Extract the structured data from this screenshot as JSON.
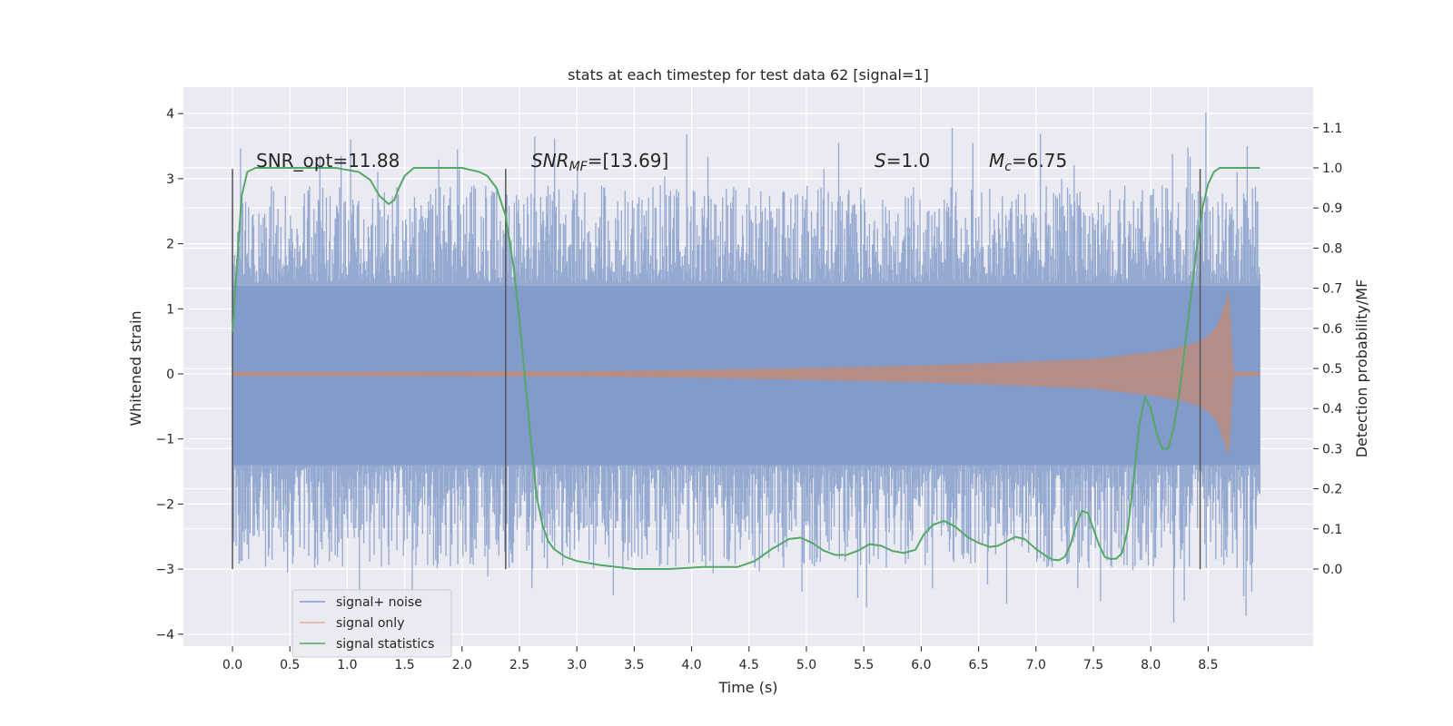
{
  "chart_data": {
    "type": "line",
    "title": "stats at each timestep for test data 62 [signal=1]",
    "xlabel": "Time (s)",
    "ylabel": "Whitened strain",
    "ylabel_right": "Detection probability/MF",
    "xlim": [
      -0.44,
      9.44
    ],
    "ylim": [
      -4.2,
      4.4
    ],
    "ylim_right": [
      -0.18,
      1.2
    ],
    "xticks": [
      0.0,
      0.5,
      1.0,
      1.5,
      2.0,
      2.5,
      3.0,
      3.5,
      4.0,
      4.5,
      5.0,
      5.5,
      6.0,
      6.5,
      7.0,
      7.5,
      8.0,
      8.5
    ],
    "xtick_labels": [
      "0.0",
      "0.5",
      "1.0",
      "1.5",
      "2.0",
      "2.5",
      "3.0",
      "3.5",
      "4.0",
      "4.5",
      "5.0",
      "5.5",
      "6.0",
      "6.5",
      "7.0",
      "7.5",
      "8.0",
      "8.5"
    ],
    "yticks": [
      4,
      3,
      2,
      1,
      0,
      -1,
      -2,
      -3,
      -4
    ],
    "ytick_labels": [
      "4",
      "3",
      "2",
      "1",
      "0",
      "−1",
      "−2",
      "−3",
      "−4"
    ],
    "yticks_right": [
      1.1,
      1.0,
      0.9,
      0.8,
      0.7,
      0.6,
      0.5,
      0.4,
      0.3,
      0.2,
      0.1,
      0.0
    ],
    "ytick_labels_right": [
      "1.1",
      "1.0",
      "0.9",
      "0.8",
      "0.7",
      "0.6",
      "0.5",
      "0.4",
      "0.3",
      "0.2",
      "0.1",
      "0.0"
    ],
    "annotations": {
      "snr_opt": "SNR_opt=11.88",
      "snr_mf_base": "SNR",
      "snr_mf_sub": "MF",
      "snr_mf_value": "=[13.69]",
      "s_sym": "S",
      "s_value": "=1.0",
      "mc_sym": "M",
      "mc_sub": "c",
      "mc_value": "=6.75"
    },
    "segment_markers_x": [
      0.0,
      2.38,
      8.43
    ],
    "segment_marker_yrange": [
      -3.0,
      3.15
    ],
    "legend": {
      "position": "lower-left",
      "entries": [
        {
          "label": "signal+ noise",
          "color": "#7f98c8"
        },
        {
          "label": "signal only",
          "color": "#dd8452"
        },
        {
          "label": "signal statistics",
          "color": "#55a868"
        }
      ]
    },
    "series": [
      {
        "name": "signal statistics",
        "axis": "right",
        "color": "#55a868",
        "x": [
          0.0,
          0.08,
          0.13,
          0.2,
          0.3,
          0.5,
          0.7,
          0.9,
          1.1,
          1.2,
          1.28,
          1.36,
          1.41,
          1.45,
          1.5,
          1.58,
          1.65,
          1.8,
          2.0,
          2.15,
          2.22,
          2.3,
          2.38,
          2.45,
          2.5,
          2.55,
          2.6,
          2.65,
          2.7,
          2.75,
          2.8,
          2.85,
          2.9,
          3.0,
          3.2,
          3.5,
          3.8,
          4.1,
          4.4,
          4.55,
          4.7,
          4.85,
          4.95,
          5.05,
          5.15,
          5.25,
          5.35,
          5.45,
          5.55,
          5.65,
          5.75,
          5.85,
          5.95,
          6.02,
          6.1,
          6.2,
          6.3,
          6.4,
          6.5,
          6.6,
          6.67,
          6.75,
          6.82,
          6.9,
          7.0,
          7.1,
          7.15,
          7.2,
          7.25,
          7.3,
          7.35,
          7.4,
          7.45,
          7.5,
          7.55,
          7.6,
          7.65,
          7.7,
          7.75,
          7.8,
          7.85,
          7.9,
          7.95,
          8.0,
          8.05,
          8.1,
          8.15,
          8.2,
          8.25,
          8.3,
          8.35,
          8.4,
          8.45,
          8.5,
          8.55,
          8.6,
          8.7,
          8.8,
          8.9,
          8.95
        ],
        "values": [
          0.59,
          0.93,
          0.99,
          1.0,
          1.0,
          1.0,
          1.0,
          1.0,
          0.99,
          0.97,
          0.93,
          0.91,
          0.92,
          0.95,
          0.98,
          1.0,
          1.0,
          1.0,
          1.0,
          0.99,
          0.98,
          0.95,
          0.88,
          0.75,
          0.62,
          0.47,
          0.32,
          0.18,
          0.11,
          0.07,
          0.05,
          0.04,
          0.03,
          0.02,
          0.01,
          0.0,
          0.0,
          0.005,
          0.005,
          0.02,
          0.05,
          0.075,
          0.078,
          0.065,
          0.046,
          0.035,
          0.035,
          0.046,
          0.062,
          0.058,
          0.045,
          0.04,
          0.048,
          0.085,
          0.11,
          0.12,
          0.105,
          0.08,
          0.065,
          0.055,
          0.058,
          0.07,
          0.08,
          0.075,
          0.05,
          0.03,
          0.023,
          0.022,
          0.03,
          0.06,
          0.11,
          0.145,
          0.14,
          0.1,
          0.06,
          0.03,
          0.025,
          0.026,
          0.04,
          0.1,
          0.22,
          0.36,
          0.43,
          0.4,
          0.34,
          0.3,
          0.3,
          0.35,
          0.44,
          0.56,
          0.68,
          0.8,
          0.9,
          0.96,
          0.99,
          1.0,
          1.0,
          1.0,
          1.0,
          1.0
        ]
      },
      {
        "name": "signal only",
        "axis": "left",
        "color": "#dd8452",
        "description_shape": "chirp envelope",
        "x": [
          0.0,
          3.0,
          4.0,
          5.0,
          6.0,
          6.5,
          7.0,
          7.5,
          8.0,
          8.2,
          8.4,
          8.5,
          8.58,
          8.65,
          8.68,
          8.72,
          8.95
        ],
        "envelope": [
          0.03,
          0.04,
          0.06,
          0.09,
          0.13,
          0.16,
          0.19,
          0.23,
          0.33,
          0.39,
          0.48,
          0.58,
          0.75,
          1.1,
          1.3,
          0.03,
          0.03
        ]
      },
      {
        "name": "signal+ noise",
        "axis": "left",
        "color": "#7f98c8",
        "x_range": [
          0.0,
          8.95
        ],
        "dense_band": [
          -1.4,
          1.35
        ],
        "typical_peak": 2.6,
        "max_value": 4.02,
        "min_value": -3.82
      }
    ]
  }
}
